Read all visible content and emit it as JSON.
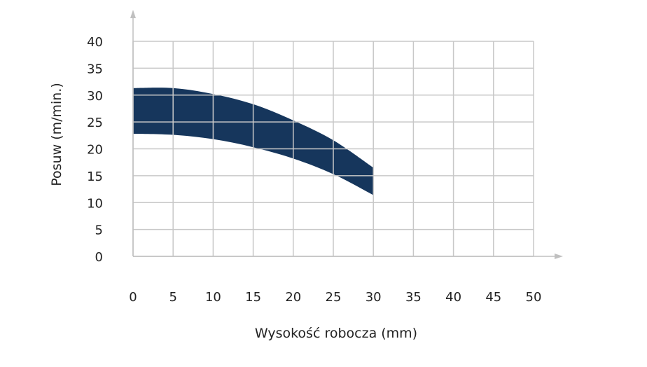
{
  "chart_data": {
    "type": "area",
    "title": "",
    "xlabel": "Wysokość robocza (mm)",
    "ylabel": "Posuw (m/min.)",
    "xlim": [
      0,
      50
    ],
    "ylim": [
      0,
      40
    ],
    "x_ticks": [
      0,
      5,
      10,
      15,
      20,
      25,
      30,
      35,
      40,
      45,
      50
    ],
    "y_ticks": [
      0,
      5,
      10,
      15,
      20,
      25,
      30,
      35,
      40
    ],
    "grid": true,
    "legend": "none",
    "band_color": "#16365c",
    "grid_color": "#c8c8c8",
    "series": [
      {
        "x": [
          0,
          5,
          10,
          15,
          20,
          25,
          30
        ],
        "upper": [
          31.3,
          31.3,
          30.2,
          28.3,
          25.3,
          21.6,
          16.5
        ],
        "lower": [
          22.8,
          22.6,
          21.8,
          20.3,
          18.2,
          15.3,
          11.4
        ]
      }
    ]
  }
}
